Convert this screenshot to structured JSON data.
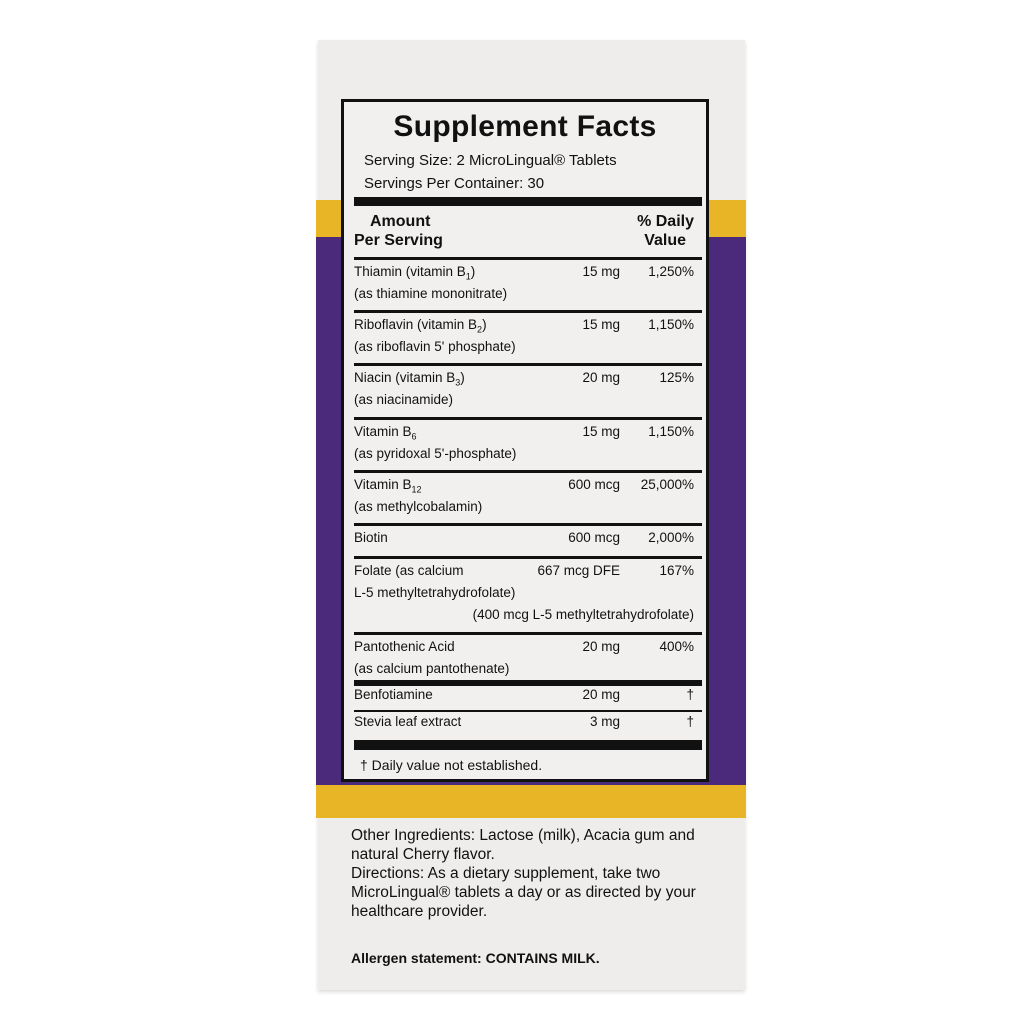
{
  "colors": {
    "yellow": "#e8b526",
    "purple": "#4b2a7c",
    "box": "#efedec"
  },
  "panel": {
    "title": "Supplement Facts",
    "serving_size": "Serving Size: 2 MicroLingual® Tablets",
    "servings_per_container": "Servings Per Container: 30",
    "header_amount_1": "Amount",
    "header_amount_2": "Per Serving",
    "header_dv_1": "% Daily",
    "header_dv_2": "Value",
    "rows": [
      {
        "name": "Thiamin (vitamin B",
        "sub": "1",
        "name_end": ")",
        "source": "(as thiamine mononitrate)",
        "amount": "15 mg",
        "dv": "1,250%"
      },
      {
        "name": "Riboflavin (vitamin B",
        "sub": "2",
        "name_end": ")",
        "source": "(as riboflavin 5' phosphate)",
        "amount": "15 mg",
        "dv": "1,150%"
      },
      {
        "name": "Niacin (vitamin B",
        "sub": "3",
        "name_end": ")",
        "source": "(as niacinamide)",
        "amount": "20 mg",
        "dv": "125%"
      },
      {
        "name": "Vitamin B",
        "sub": "6",
        "name_end": "",
        "source": "(as pyridoxal 5'-phosphate)",
        "amount": "15 mg",
        "dv": "1,150%"
      },
      {
        "name": "Vitamin B",
        "sub": "12",
        "name_end": "",
        "source": "(as methylcobalamin)",
        "amount": "600 mcg",
        "dv": "25,000%"
      },
      {
        "name": "Biotin",
        "sub": "",
        "name_end": "",
        "source": "",
        "amount": "600 mcg",
        "dv": "2,000%"
      },
      {
        "name": "Folate (as calcium",
        "sub": "",
        "name_end": "",
        "source": "L-5 methyltetrahydrofolate)",
        "amount": "667 mcg DFE",
        "dv": "167%",
        "extra": "(400 mcg L-5 methyltetrahydrofolate)"
      },
      {
        "name": "Pantothenic Acid",
        "sub": "",
        "name_end": "",
        "source": "(as calcium pantothenate)",
        "amount": "20 mg",
        "dv": "400%"
      },
      {
        "name": "Benfotiamine",
        "sub": "",
        "name_end": "",
        "source": "",
        "amount": "20 mg",
        "dv": "†"
      },
      {
        "name": "Stevia leaf extract",
        "sub": "",
        "name_end": "",
        "source": "",
        "amount": "3 mg",
        "dv": "†"
      }
    ],
    "footnote": "†  Daily value not established."
  },
  "other_ingredients": "Other Ingredients: Lactose (milk), Acacia gum and natural Cherry flavor.",
  "directions": "Directions: As a dietary supplement, take two MicroLingual® tablets a day or as directed by your healthcare provider.",
  "allergen": "Allergen statement: CONTAINS MILK."
}
